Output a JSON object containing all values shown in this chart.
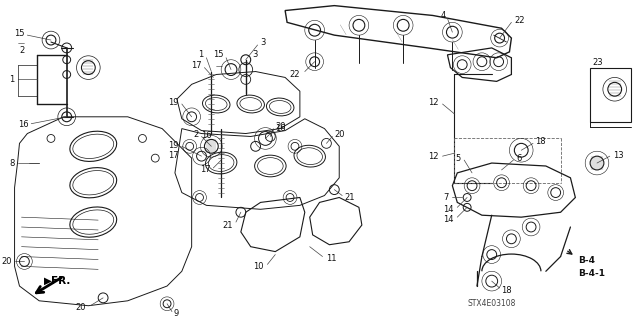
{
  "bg_color": "#ffffff",
  "fig_width": 6.4,
  "fig_height": 3.19,
  "diagram_code": "STX4E03108",
  "line_color": "#1a1a1a",
  "label_color": "#111111",
  "dashed_color": "#555555"
}
